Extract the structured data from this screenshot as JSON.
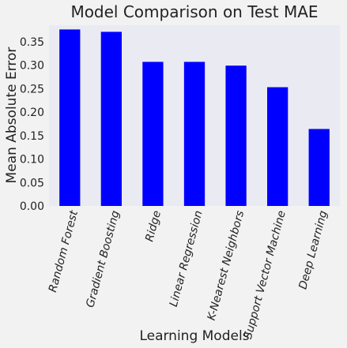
{
  "colors": {
    "background": "#f2f2f2",
    "plot_area": "#eaeaf2",
    "bar": "#0000ff"
  },
  "chart_data": {
    "type": "bar",
    "title": "Model Comparison on Test MAE",
    "xlabel": "Learning Models",
    "ylabel": "Mean Absolute Error",
    "categories": [
      "Random Forest",
      "Gradient Boosting",
      "Ridge",
      "Linear Regression",
      "K-Nearest Neighbors",
      "Support Vector Machine",
      "Deep Learning"
    ],
    "values": [
      0.376,
      0.371,
      0.307,
      0.307,
      0.299,
      0.253,
      0.164
    ],
    "ylim": [
      0,
      0.385
    ],
    "yticks": [
      "0.00",
      "0.05",
      "0.10",
      "0.15",
      "0.20",
      "0.25",
      "0.30",
      "0.35"
    ],
    "grid": false,
    "legend": "none"
  }
}
